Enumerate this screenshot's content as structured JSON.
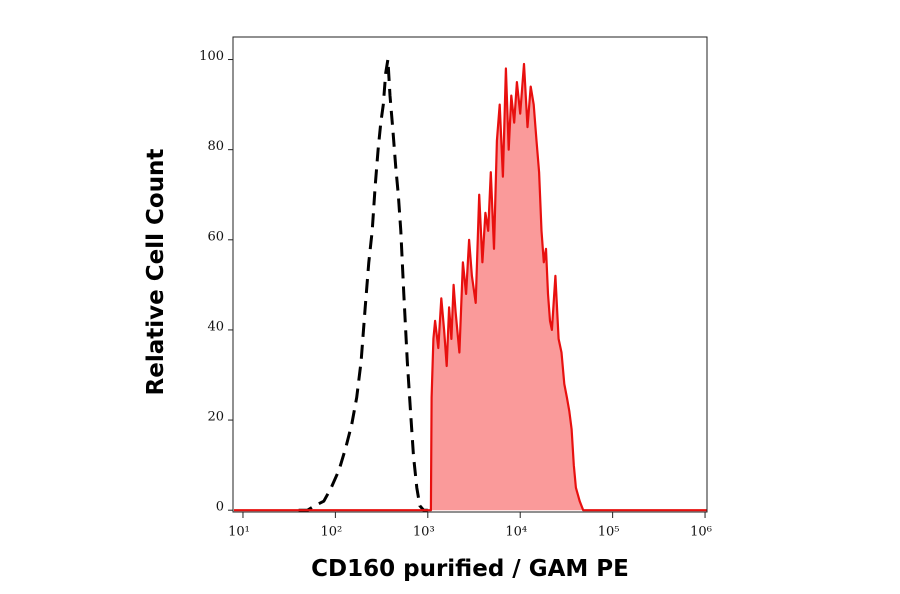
{
  "chart_data": {
    "type": "histogram-overlay",
    "x_label": "CD160 purified / GAM PE",
    "y_label": "Relative Cell Count",
    "xscale": "log",
    "xlim": [
      7.8,
      1050000
    ],
    "ylim": [
      -0.4,
      105
    ],
    "xticks": [
      {
        "value": 10,
        "label": "10¹"
      },
      {
        "value": 100,
        "label": "10²"
      },
      {
        "value": 1000,
        "label": "10³"
      },
      {
        "value": 10000,
        "label": "10⁴"
      },
      {
        "value": 100000,
        "label": "10⁵"
      },
      {
        "value": 1000000,
        "label": "10⁶"
      }
    ],
    "yticks": [
      0,
      20,
      40,
      60,
      80,
      100
    ],
    "series": [
      {
        "color": "#000000",
        "line_style": "dashed",
        "filled": false,
        "x": [
          40,
          50,
          60,
          75,
          90,
          110,
          130,
          150,
          170,
          190,
          210,
          230,
          250,
          270,
          290,
          310,
          330,
          350,
          370,
          390,
          420,
          450,
          480,
          510,
          550,
          600,
          650,
          700,
          760,
          820,
          900,
          1000
        ],
        "values": [
          0,
          0,
          1,
          2,
          5,
          9,
          14,
          19,
          25,
          33,
          45,
          55,
          62,
          72,
          80,
          86,
          90,
          97,
          100,
          92,
          84,
          76,
          70,
          62,
          48,
          33,
          22,
          12,
          5,
          1,
          0,
          0
        ]
      },
      {
        "color": "#e8100f",
        "line_style": "solid",
        "filled": true,
        "fill": "#fa9a9a",
        "x": [
          8,
          1080,
          1100,
          1150,
          1200,
          1300,
          1400,
          1500,
          1600,
          1700,
          1800,
          1900,
          2000,
          2200,
          2400,
          2600,
          2800,
          3000,
          3300,
          3600,
          3900,
          4200,
          4500,
          4800,
          5200,
          5600,
          6000,
          6500,
          7000,
          7500,
          8000,
          8600,
          9200,
          10000,
          11000,
          12000,
          13000,
          14000,
          15000,
          16000,
          17000,
          18000,
          19000,
          20000,
          21000,
          22000,
          24000,
          26000,
          28000,
          30000,
          32000,
          34000,
          36000,
          38000,
          40000,
          44000,
          48000,
          52000,
          60000,
          1050000
        ],
        "values": [
          0,
          0,
          25,
          38,
          42,
          36,
          47,
          40,
          32,
          45,
          38,
          50,
          44,
          35,
          55,
          48,
          60,
          52,
          46,
          70,
          55,
          66,
          62,
          75,
          58,
          82,
          90,
          74,
          98,
          80,
          92,
          86,
          95,
          88,
          99,
          85,
          94,
          90,
          82,
          75,
          62,
          55,
          58,
          48,
          42,
          40,
          52,
          38,
          35,
          28,
          25,
          22,
          18,
          10,
          5,
          2,
          0,
          0,
          0,
          0
        ]
      }
    ]
  }
}
